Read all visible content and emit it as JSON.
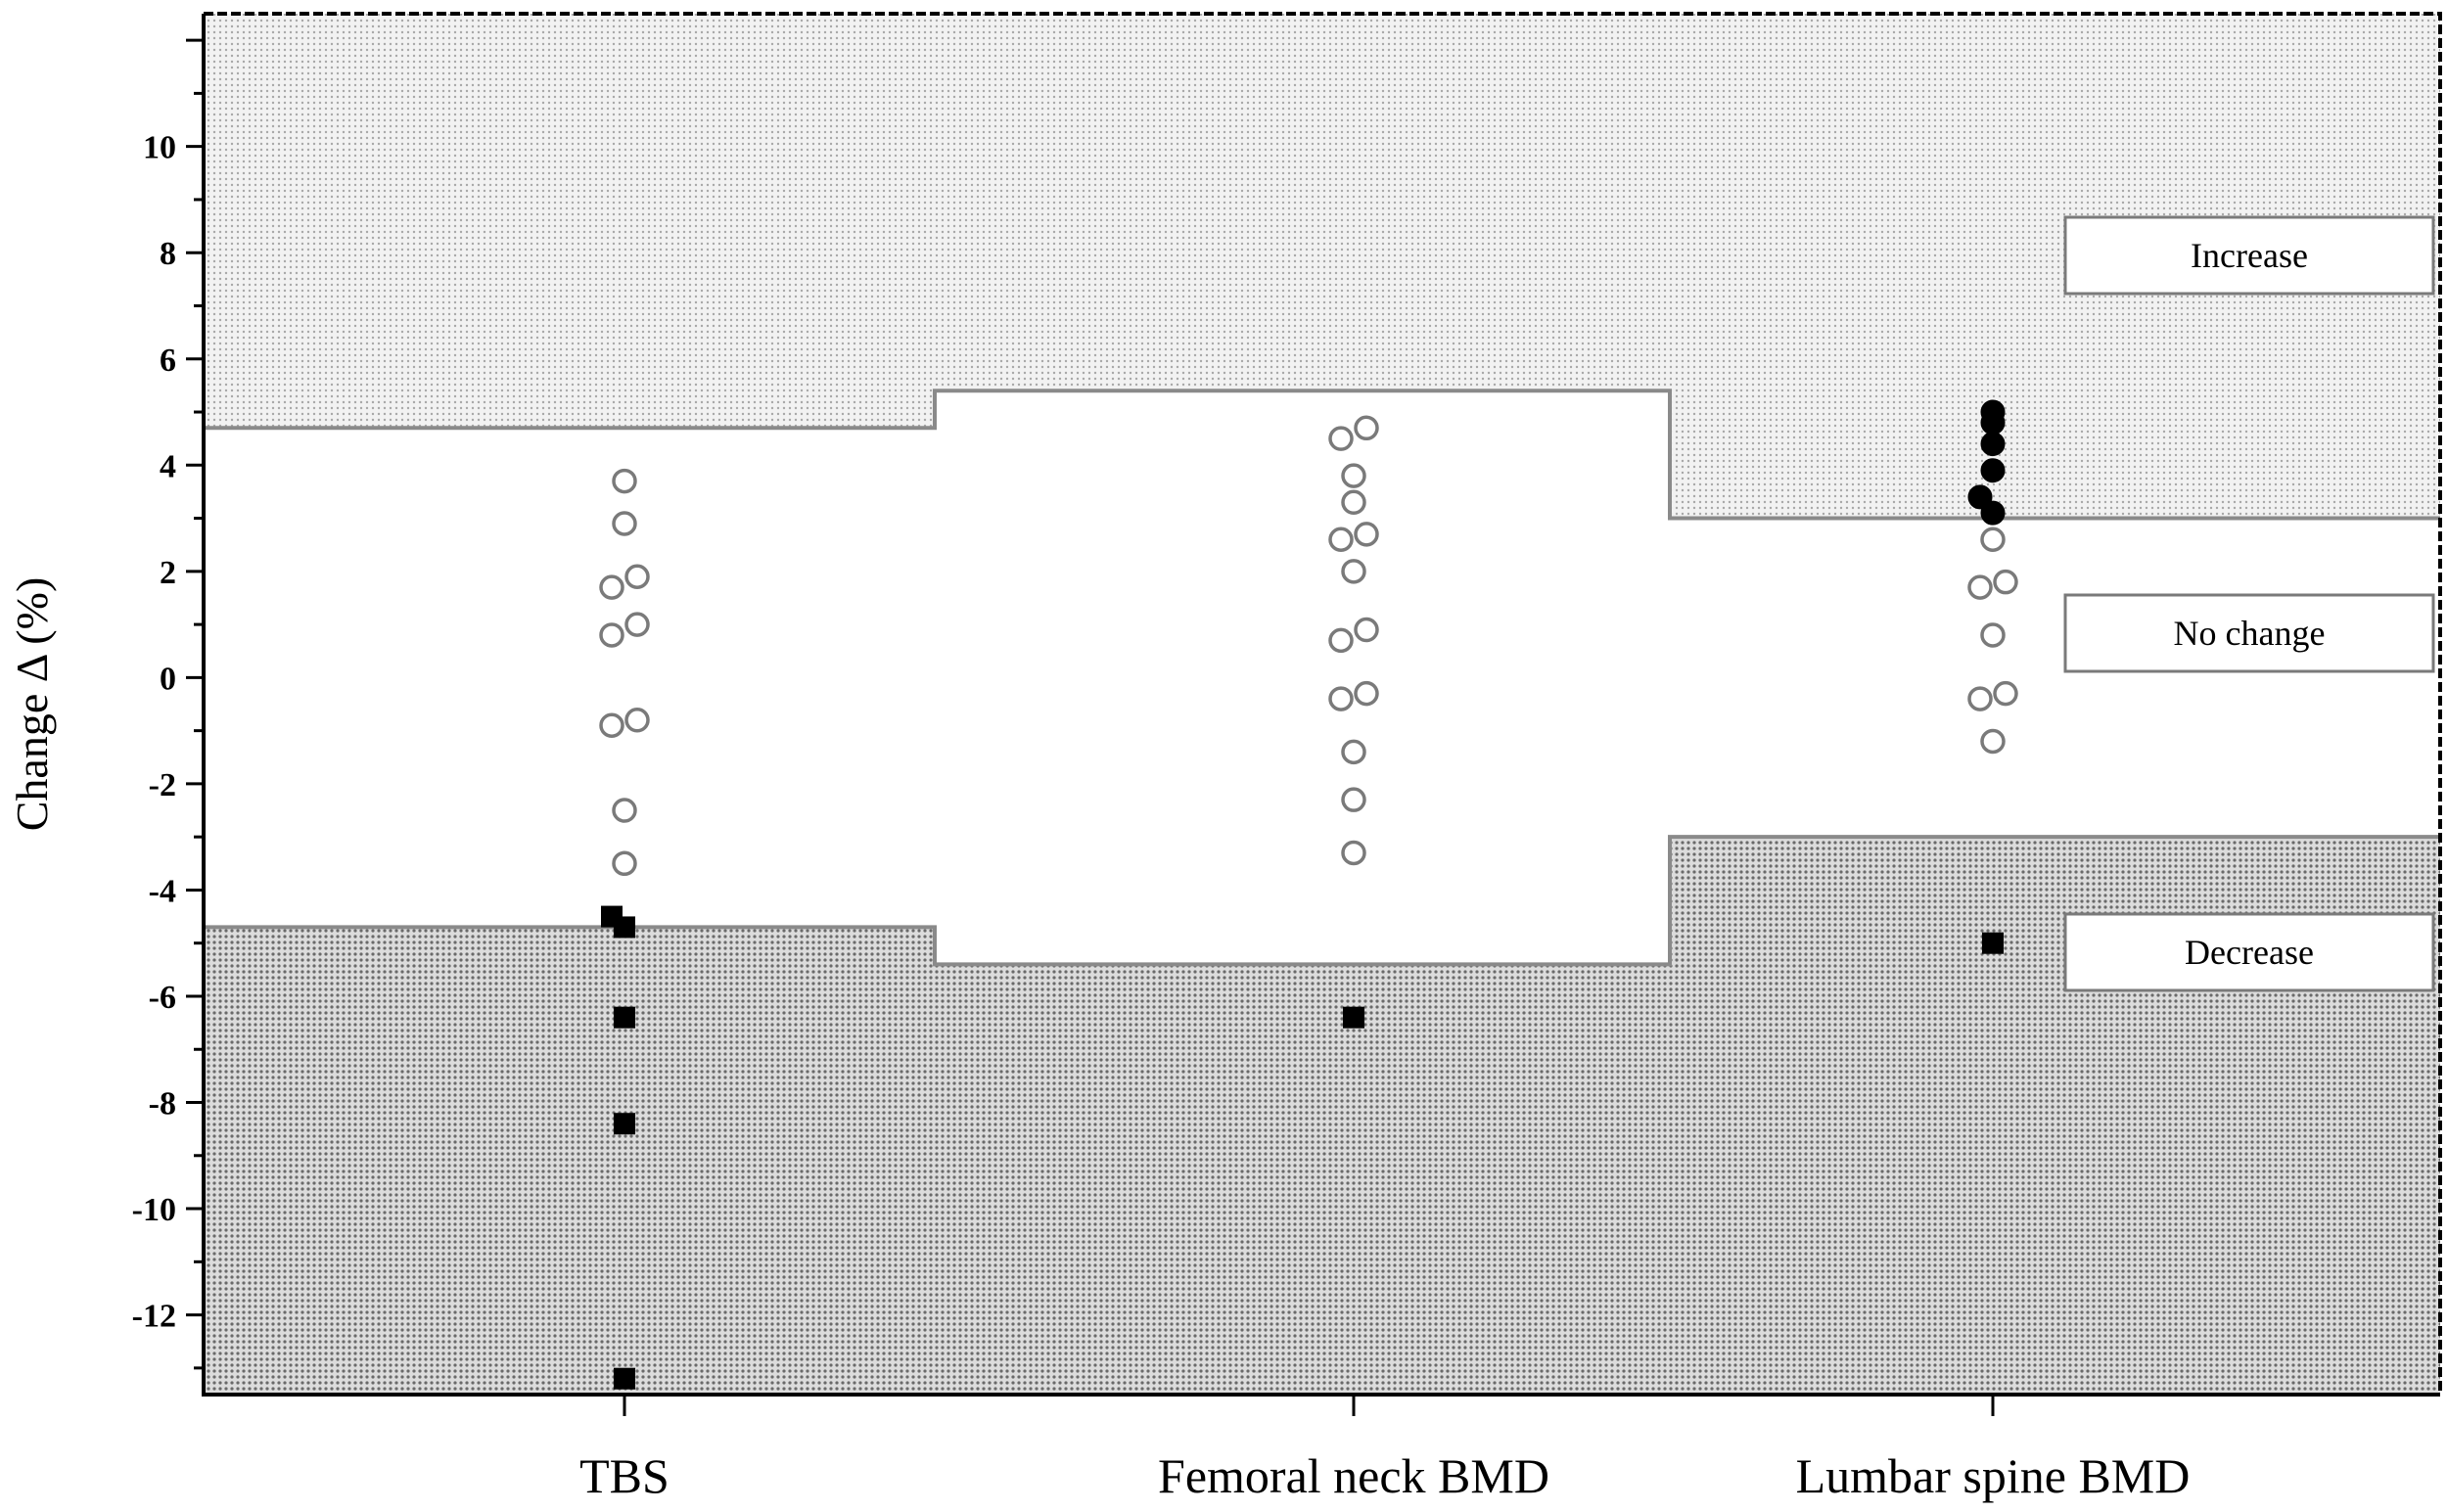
{
  "chart_data": {
    "type": "scatter",
    "title": "",
    "xlabel": "",
    "ylabel": "Change Δ (%)",
    "ylim": [
      -13.5,
      12.5
    ],
    "yticks": [
      10,
      8,
      6,
      4,
      2,
      0,
      -2,
      -4,
      -6,
      -8,
      -10,
      -12
    ],
    "categories": [
      "TBS",
      "Femoral neck BMD",
      "Lumbar spine BMD"
    ],
    "grid": false,
    "legend": "right",
    "zones": [
      {
        "label": "Increase",
        "shading": "light dotted",
        "color": "#d8d8d8"
      },
      {
        "label": "No change",
        "shading": "none",
        "color": "#ffffff"
      },
      {
        "label": "Decrease",
        "shading": "dark dotted",
        "color": "#9a9a9a"
      }
    ],
    "thresholds": [
      {
        "category": "TBS",
        "upper": 4.7,
        "lower": -4.7
      },
      {
        "category": "Femoral neck BMD",
        "upper": 5.4,
        "lower": -5.4
      },
      {
        "category": "Lumbar spine BMD",
        "upper": 3.0,
        "lower": -3.0
      }
    ],
    "series": [
      {
        "marker": "open-circle",
        "points": [
          {
            "category": "TBS",
            "y": 3.7,
            "offset": 0
          },
          {
            "category": "TBS",
            "y": 2.9,
            "offset": 0
          },
          {
            "category": "TBS",
            "y": 1.9,
            "offset": 1
          },
          {
            "category": "TBS",
            "y": 1.7,
            "offset": -1
          },
          {
            "category": "TBS",
            "y": 1.0,
            "offset": 1
          },
          {
            "category": "TBS",
            "y": 0.8,
            "offset": -1
          },
          {
            "category": "TBS",
            "y": -0.8,
            "offset": 1
          },
          {
            "category": "TBS",
            "y": -0.9,
            "offset": -1
          },
          {
            "category": "TBS",
            "y": -2.5,
            "offset": 0
          },
          {
            "category": "TBS",
            "y": -3.5,
            "offset": 0
          },
          {
            "category": "Femoral neck BMD",
            "y": 4.7,
            "offset": 1
          },
          {
            "category": "Femoral neck BMD",
            "y": 4.5,
            "offset": -1
          },
          {
            "category": "Femoral neck BMD",
            "y": 3.8,
            "offset": 0
          },
          {
            "category": "Femoral neck BMD",
            "y": 3.3,
            "offset": 0
          },
          {
            "category": "Femoral neck BMD",
            "y": 2.7,
            "offset": 1
          },
          {
            "category": "Femoral neck BMD",
            "y": 2.6,
            "offset": -1
          },
          {
            "category": "Femoral neck BMD",
            "y": 2.0,
            "offset": 0
          },
          {
            "category": "Femoral neck BMD",
            "y": 0.9,
            "offset": 1
          },
          {
            "category": "Femoral neck BMD",
            "y": 0.7,
            "offset": -1
          },
          {
            "category": "Femoral neck BMD",
            "y": -0.3,
            "offset": 1
          },
          {
            "category": "Femoral neck BMD",
            "y": -0.4,
            "offset": -1
          },
          {
            "category": "Femoral neck BMD",
            "y": -1.4,
            "offset": 0
          },
          {
            "category": "Femoral neck BMD",
            "y": -2.3,
            "offset": 0
          },
          {
            "category": "Femoral neck BMD",
            "y": -3.3,
            "offset": 0
          },
          {
            "category": "Lumbar spine BMD",
            "y": 2.6,
            "offset": 0
          },
          {
            "category": "Lumbar spine BMD",
            "y": 1.8,
            "offset": 1
          },
          {
            "category": "Lumbar spine BMD",
            "y": 1.7,
            "offset": -1
          },
          {
            "category": "Lumbar spine BMD",
            "y": 0.8,
            "offset": 0
          },
          {
            "category": "Lumbar spine BMD",
            "y": -0.3,
            "offset": 1
          },
          {
            "category": "Lumbar spine BMD",
            "y": -0.4,
            "offset": -1
          },
          {
            "category": "Lumbar spine BMD",
            "y": -1.2,
            "offset": 0
          }
        ]
      },
      {
        "marker": "filled-circle",
        "points": [
          {
            "category": "Lumbar spine BMD",
            "y": 5.0,
            "offset": 0
          },
          {
            "category": "Lumbar spine BMD",
            "y": 4.8,
            "offset": 0
          },
          {
            "category": "Lumbar spine BMD",
            "y": 4.4,
            "offset": 0
          },
          {
            "category": "Lumbar spine BMD",
            "y": 3.9,
            "offset": 0
          },
          {
            "category": "Lumbar spine BMD",
            "y": 3.4,
            "offset": -1
          },
          {
            "category": "Lumbar spine BMD",
            "y": 3.1,
            "offset": 0
          }
        ]
      },
      {
        "marker": "filled-square",
        "points": [
          {
            "category": "TBS",
            "y": -4.5,
            "offset": -1
          },
          {
            "category": "TBS",
            "y": -4.7,
            "offset": 0
          },
          {
            "category": "TBS",
            "y": -6.4,
            "offset": 0
          },
          {
            "category": "TBS",
            "y": -8.4,
            "offset": 0
          },
          {
            "category": "TBS",
            "y": -13.2,
            "offset": 0
          },
          {
            "category": "Femoral neck BMD",
            "y": -6.4,
            "offset": 0
          },
          {
            "category": "Lumbar spine BMD",
            "y": -5.0,
            "offset": 0
          }
        ]
      }
    ]
  }
}
